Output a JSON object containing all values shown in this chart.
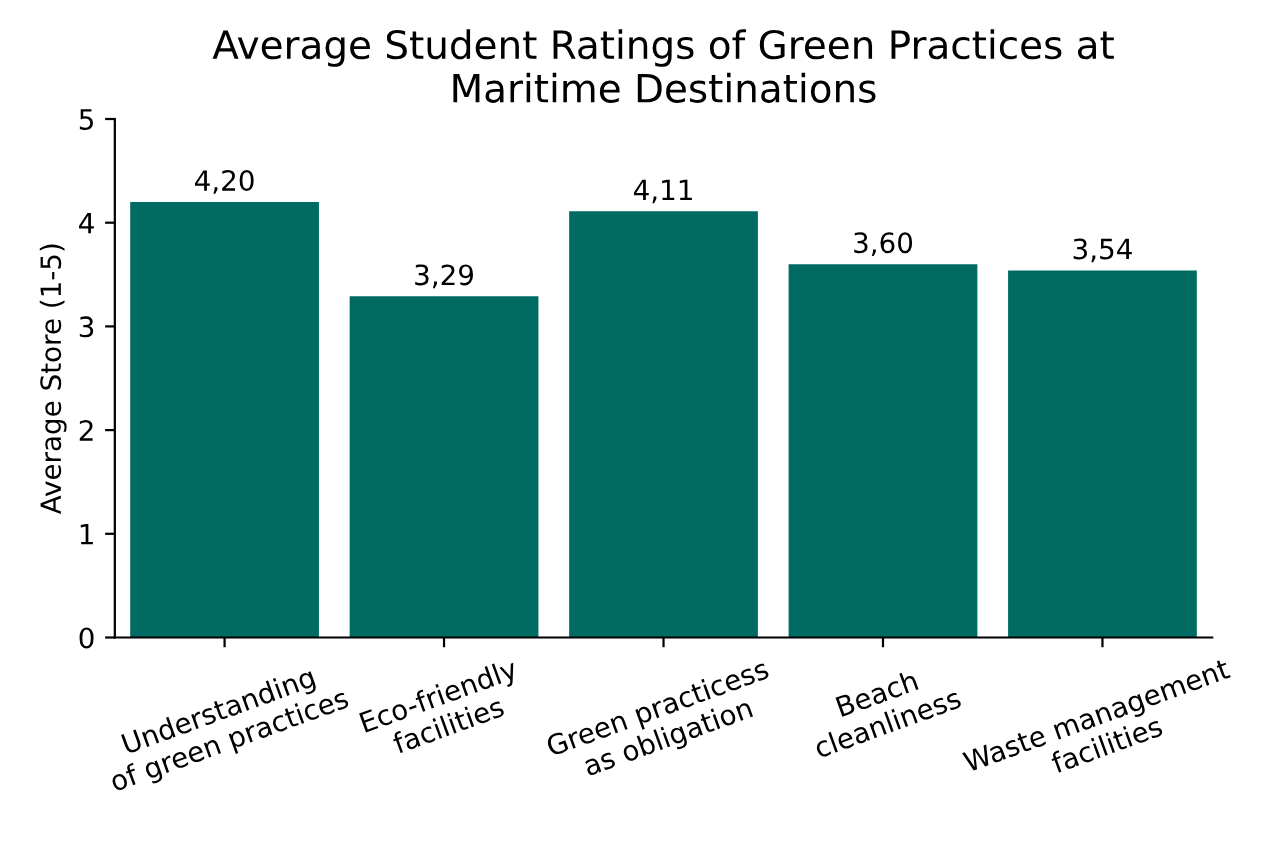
{
  "chart_data": {
    "type": "bar",
    "title": "Average Student Ratings of Green Practices at\nMaritime Destinations",
    "ylabel": "Average Store (1-5)",
    "categories": [
      "Understanding\nof green practices",
      "Eco-friendly\nfacilities",
      "Green practicess\nas obligation",
      "Beach\ncleanliness",
      "Waste management\nfacilities"
    ],
    "values": [
      4.2,
      3.29,
      4.11,
      3.6,
      3.54
    ],
    "value_labels": [
      "4,20",
      "3,29",
      "4,11",
      "3,60",
      "3,54"
    ],
    "color": "#006b63",
    "ylim": [
      0,
      5
    ],
    "yticks": [
      0,
      1,
      2,
      3,
      4,
      5
    ],
    "grid": false
  }
}
